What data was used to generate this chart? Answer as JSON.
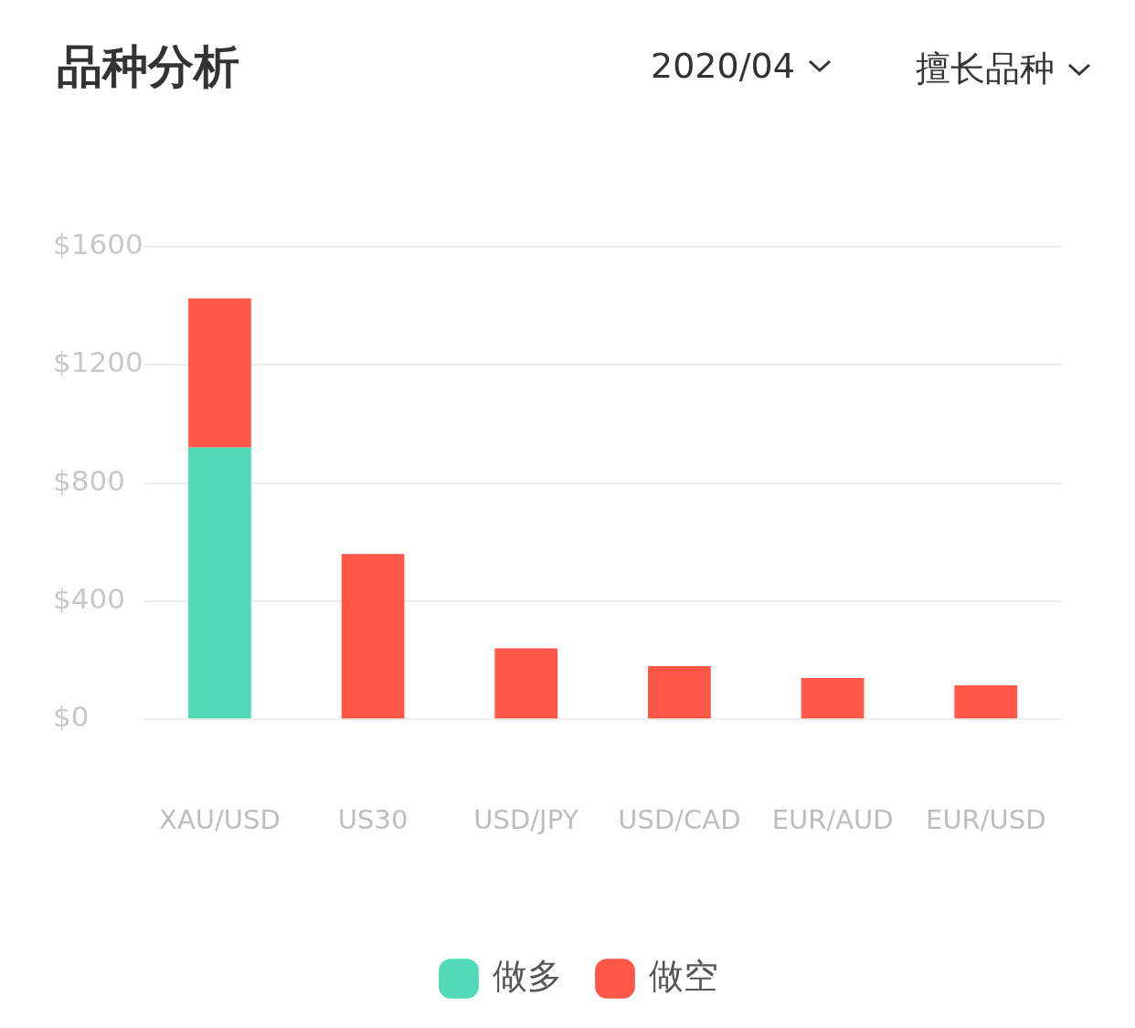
{
  "chart_data": {
    "type": "bar",
    "title": "品种分析",
    "annotations": [
      "2020/04",
      "擅长品种"
    ],
    "categories": [
      "XAU/USD",
      "US30",
      "USD/JPY",
      "USD/CAD",
      "EUR/AUD",
      "EUR/USD"
    ],
    "stacked": true,
    "series": [
      {
        "name": "做多",
        "color": "#52d9b8",
        "values": [
          920,
          null,
          null,
          null,
          null,
          null
        ]
      },
      {
        "name": "做空",
        "color": "#ff5748",
        "values": [
          505,
          560,
          240,
          180,
          140,
          115
        ]
      }
    ],
    "ylim": [
      0,
      1600
    ],
    "yticks": [
      {
        "value": 0,
        "label": "$0"
      },
      {
        "value": 400,
        "label": "$400"
      },
      {
        "value": 800,
        "label": "$800"
      },
      {
        "value": 1200,
        "label": "$1200"
      },
      {
        "value": 1600,
        "label": "$1600"
      }
    ],
    "grid": "y",
    "legend": "bottom"
  }
}
